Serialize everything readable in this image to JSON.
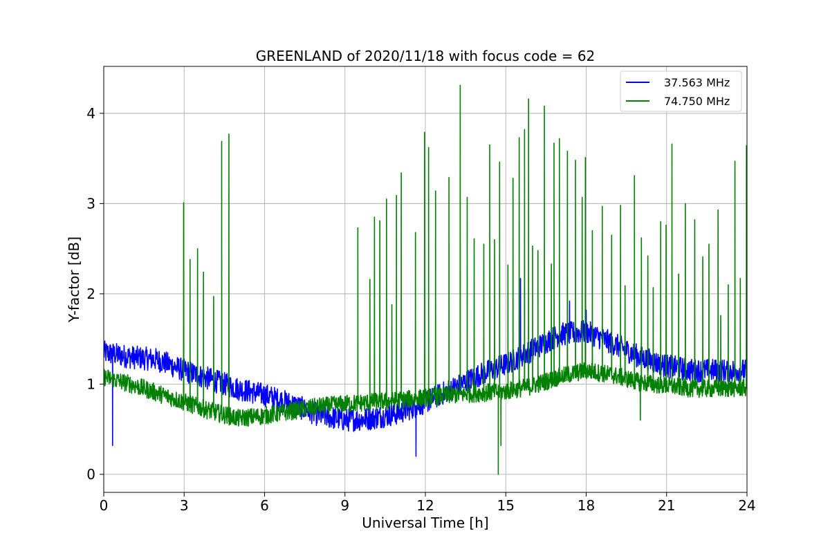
{
  "chart_data": {
    "type": "line",
    "title": "GREENLAND of 2020/11/18 with focus code = 62",
    "xlabel": "Universal Time [h]",
    "ylabel": "Y-factor [dB]",
    "xlim": [
      0,
      24
    ],
    "ylim": [
      -0.2,
      4.52
    ],
    "xticks": [
      0,
      3,
      6,
      9,
      12,
      15,
      18,
      21,
      24
    ],
    "yticks": [
      0,
      1,
      2,
      3,
      4
    ],
    "grid": true,
    "legend_position": "top-right",
    "series": [
      {
        "name": "37.563 MHz",
        "color": "#0000ff",
        "baseline": [
          [
            0,
            1.35
          ],
          [
            1,
            1.3
          ],
          [
            2,
            1.27
          ],
          [
            3,
            1.15
          ],
          [
            4,
            1.05
          ],
          [
            5,
            0.95
          ],
          [
            6,
            0.88
          ],
          [
            7,
            0.78
          ],
          [
            8,
            0.66
          ],
          [
            9,
            0.6
          ],
          [
            10,
            0.62
          ],
          [
            11,
            0.68
          ],
          [
            12,
            0.8
          ],
          [
            13,
            0.95
          ],
          [
            14,
            1.1
          ],
          [
            15,
            1.22
          ],
          [
            16,
            1.38
          ],
          [
            17,
            1.55
          ],
          [
            18,
            1.58
          ],
          [
            19,
            1.45
          ],
          [
            20,
            1.3
          ],
          [
            21,
            1.2
          ],
          [
            22,
            1.15
          ],
          [
            23,
            1.15
          ],
          [
            24,
            1.15
          ]
        ],
        "noise_amplitude": 0.13,
        "dips": [
          [
            0.33,
            0.32
          ],
          [
            11.65,
            0.2
          ]
        ],
        "spikes": [
          [
            15.55,
            2.17
          ],
          [
            17.38,
            1.92
          ],
          [
            18.0,
            1.82
          ]
        ]
      },
      {
        "name": "74.750 MHz",
        "color": "#008000",
        "baseline": [
          [
            0,
            1.08
          ],
          [
            1,
            1.0
          ],
          [
            2,
            0.9
          ],
          [
            3,
            0.8
          ],
          [
            4,
            0.7
          ],
          [
            5,
            0.62
          ],
          [
            6,
            0.65
          ],
          [
            7,
            0.7
          ],
          [
            8,
            0.75
          ],
          [
            9,
            0.78
          ],
          [
            10,
            0.8
          ],
          [
            11,
            0.82
          ],
          [
            12,
            0.85
          ],
          [
            13,
            0.88
          ],
          [
            14,
            0.9
          ],
          [
            15,
            0.92
          ],
          [
            16,
            0.98
          ],
          [
            17,
            1.08
          ],
          [
            18,
            1.15
          ],
          [
            19,
            1.1
          ],
          [
            20,
            1.02
          ],
          [
            21,
            0.98
          ],
          [
            22,
            0.95
          ],
          [
            23,
            0.95
          ],
          [
            24,
            0.96
          ]
        ],
        "noise_amplitude": 0.1,
        "dips": [
          [
            14.72,
            0.0
          ],
          [
            14.82,
            0.32
          ],
          [
            20.02,
            0.6
          ]
        ],
        "spikes": [
          [
            2.98,
            3.01
          ],
          [
            3.22,
            2.38
          ],
          [
            3.5,
            2.5
          ],
          [
            3.72,
            2.24
          ],
          [
            4.1,
            1.97
          ],
          [
            4.4,
            3.69
          ],
          [
            4.67,
            3.77
          ],
          [
            9.48,
            2.73
          ],
          [
            9.93,
            2.16
          ],
          [
            10.1,
            2.85
          ],
          [
            10.3,
            2.81
          ],
          [
            10.55,
            3.05
          ],
          [
            10.75,
            1.88
          ],
          [
            10.92,
            3.09
          ],
          [
            11.1,
            3.34
          ],
          [
            11.63,
            2.68
          ],
          [
            11.97,
            3.79
          ],
          [
            12.12,
            3.62
          ],
          [
            12.38,
            3.14
          ],
          [
            12.88,
            3.29
          ],
          [
            13.3,
            4.31
          ],
          [
            13.56,
            3.07
          ],
          [
            13.82,
            2.61
          ],
          [
            14.18,
            2.55
          ],
          [
            14.4,
            3.65
          ],
          [
            14.58,
            2.6
          ],
          [
            14.77,
            3.46
          ],
          [
            15.08,
            2.32
          ],
          [
            15.27,
            3.28
          ],
          [
            15.5,
            3.73
          ],
          [
            15.7,
            3.82
          ],
          [
            15.85,
            4.16
          ],
          [
            16.0,
            2.53
          ],
          [
            16.2,
            2.48
          ],
          [
            16.44,
            4.08
          ],
          [
            16.7,
            2.33
          ],
          [
            16.8,
            3.67
          ],
          [
            17.0,
            3.72
          ],
          [
            17.3,
            3.58
          ],
          [
            17.6,
            3.48
          ],
          [
            17.85,
            3.07
          ],
          [
            17.97,
            3.51
          ],
          [
            18.23,
            2.7
          ],
          [
            18.6,
            2.97
          ],
          [
            18.95,
            2.65
          ],
          [
            19.28,
            2.98
          ],
          [
            19.45,
            2.09
          ],
          [
            19.8,
            3.31
          ],
          [
            20.06,
            2.62
          ],
          [
            20.3,
            2.42
          ],
          [
            20.5,
            2.07
          ],
          [
            20.78,
            2.8
          ],
          [
            20.98,
            2.76
          ],
          [
            21.2,
            3.66
          ],
          [
            21.45,
            2.22
          ],
          [
            21.7,
            3.0
          ],
          [
            22.05,
            2.82
          ],
          [
            22.35,
            2.41
          ],
          [
            22.58,
            2.55
          ],
          [
            22.92,
            2.93
          ],
          [
            23.02,
            1.76
          ],
          [
            23.3,
            2.1
          ],
          [
            23.55,
            3.47
          ],
          [
            23.75,
            2.17
          ],
          [
            23.98,
            3.64
          ]
        ]
      }
    ]
  }
}
